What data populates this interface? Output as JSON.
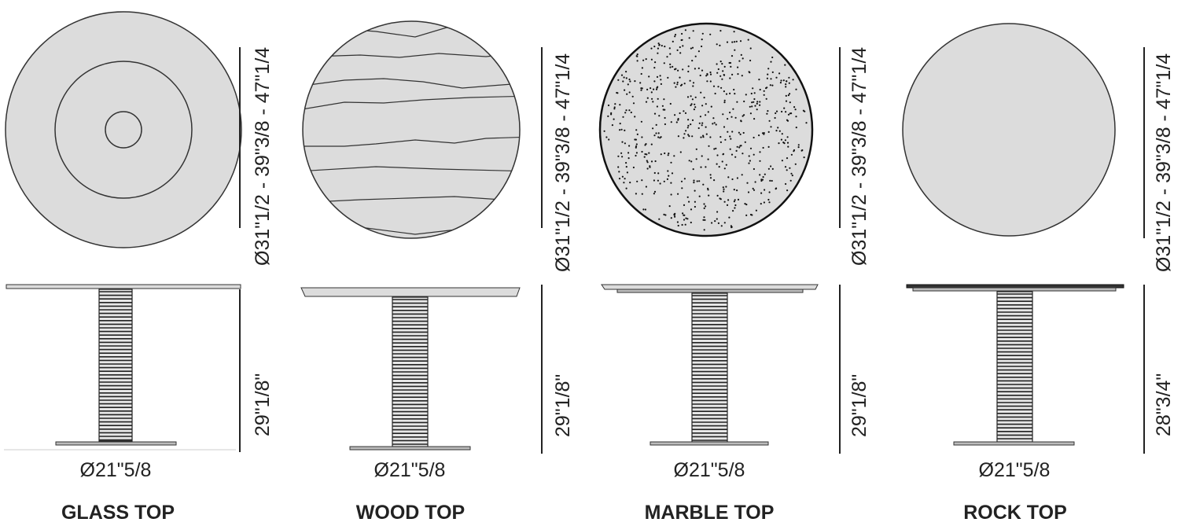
{
  "tables": [
    {
      "id": "glass",
      "title": "GLASS TOP",
      "top_diameter": "Ø31\"1/2 - 39\"3/8 - 47\"1/4",
      "height": "29\"1/8\"",
      "base_diameter": "Ø21\"5/8",
      "texture": "rings",
      "fill": "#dcdcdc"
    },
    {
      "id": "wood",
      "title": "WOOD TOP",
      "top_diameter": "Ø31\"1/2 - 39\"3/8 - 47\"1/4",
      "height": "29\"1/8\"",
      "base_diameter": "Ø21\"5/8",
      "texture": "wood-grain",
      "fill": "#dcdcdc"
    },
    {
      "id": "marble",
      "title": "MARBLE TOP",
      "top_diameter": "Ø31\"1/2 - 39\"3/8 - 47\"1/4",
      "height": "29\"1/8\"",
      "base_diameter": "Ø21\"5/8",
      "texture": "speckle",
      "fill": "#dcdcdc"
    },
    {
      "id": "rock",
      "title": "ROCK TOP",
      "top_diameter": "Ø31\"1/2 - 39\"3/8 - 47\"1/4",
      "height": "28\"3/4\"",
      "base_diameter": "Ø21\"5/8",
      "texture": "plain",
      "fill": "#dcdcdc"
    }
  ]
}
